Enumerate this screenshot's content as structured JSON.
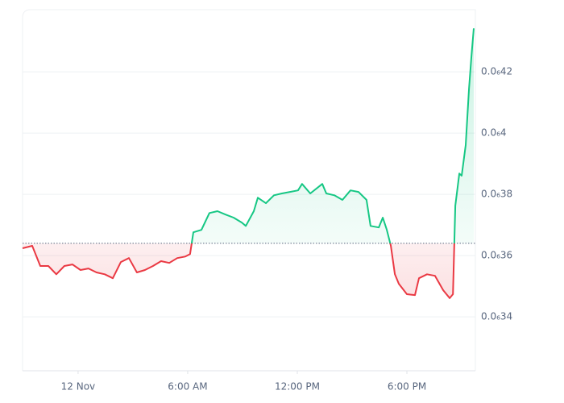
{
  "chart_data": {
    "type": "line",
    "x": [
      -3.04,
      -2.51,
      -2.07,
      -1.63,
      -1.19,
      -0.75,
      -0.31,
      0.13,
      0.57,
      1.01,
      1.46,
      1.9,
      2.34,
      2.78,
      3.22,
      3.66,
      4.1,
      4.54,
      4.99,
      5.43,
      5.87,
      6.13,
      6.31,
      6.75,
      7.19,
      7.63,
      8.07,
      8.51,
      8.96,
      9.18,
      9.62,
      9.84,
      10.28,
      10.72,
      11.16,
      11.6,
      12.04,
      12.26,
      12.71,
      13.37,
      13.59,
      14.03,
      14.47,
      14.91,
      15.35,
      15.79,
      16.01,
      16.46,
      16.68,
      16.9,
      17.12,
      17.34,
      17.56,
      18.0,
      18.44,
      18.66,
      19.1,
      19.54,
      19.99,
      20.34,
      20.52,
      20.65,
      20.87,
      21.0,
      21.22,
      21.4,
      21.53,
      21.66
    ],
    "series": [
      {
        "up_color": "#16c784",
        "down_color": "#ea3943",
        "values": [
          3.624e-07,
          3.632e-07,
          3.566e-07,
          3.566e-07,
          3.539e-07,
          3.566e-07,
          3.571e-07,
          3.553e-07,
          3.558e-07,
          3.545e-07,
          3.539e-07,
          3.526e-07,
          3.579e-07,
          3.592e-07,
          3.545e-07,
          3.553e-07,
          3.566e-07,
          3.582e-07,
          3.576e-07,
          3.592e-07,
          3.597e-07,
          3.605e-07,
          3.676e-07,
          3.684e-07,
          3.739e-07,
          3.745e-07,
          3.734e-07,
          3.724e-07,
          3.708e-07,
          3.697e-07,
          3.745e-07,
          3.789e-07,
          3.771e-07,
          3.797e-07,
          3.803e-07,
          3.808e-07,
          3.813e-07,
          3.834e-07,
          3.803e-07,
          3.834e-07,
          3.803e-07,
          3.797e-07,
          3.782e-07,
          3.813e-07,
          3.808e-07,
          3.782e-07,
          3.697e-07,
          3.692e-07,
          3.724e-07,
          3.684e-07,
          3.632e-07,
          3.539e-07,
          3.508e-07,
          3.474e-07,
          3.471e-07,
          3.526e-07,
          3.539e-07,
          3.534e-07,
          3.487e-07,
          3.461e-07,
          3.474e-07,
          3.763e-07,
          3.868e-07,
          3.861e-07,
          3.961e-07,
          4.145e-07,
          4.25e-07,
          4.342e-07
        ]
      }
    ],
    "baseline": 3.64e-07,
    "xlim": [
      -3.04,
      21.66
    ],
    "xticks": [
      {
        "value": 0,
        "label": "12 Nov"
      },
      {
        "value": 6,
        "label": "6:00 AM"
      },
      {
        "value": 12,
        "label": "12:00 PM"
      },
      {
        "value": 18,
        "label": "6:00 PM"
      }
    ],
    "ylim": [
      3.224e-07,
      4.403e-07
    ],
    "yticks": [
      {
        "value": 3.4e-07,
        "label": "0.0₆34"
      },
      {
        "value": 3.6e-07,
        "label": "0.0₆36"
      },
      {
        "value": 3.8e-07,
        "label": "0.0₆38"
      },
      {
        "value": 4e-07,
        "label": "0.0₆4"
      },
      {
        "value": 4.2e-07,
        "label": "0.0₆42"
      }
    ],
    "grid": true
  }
}
